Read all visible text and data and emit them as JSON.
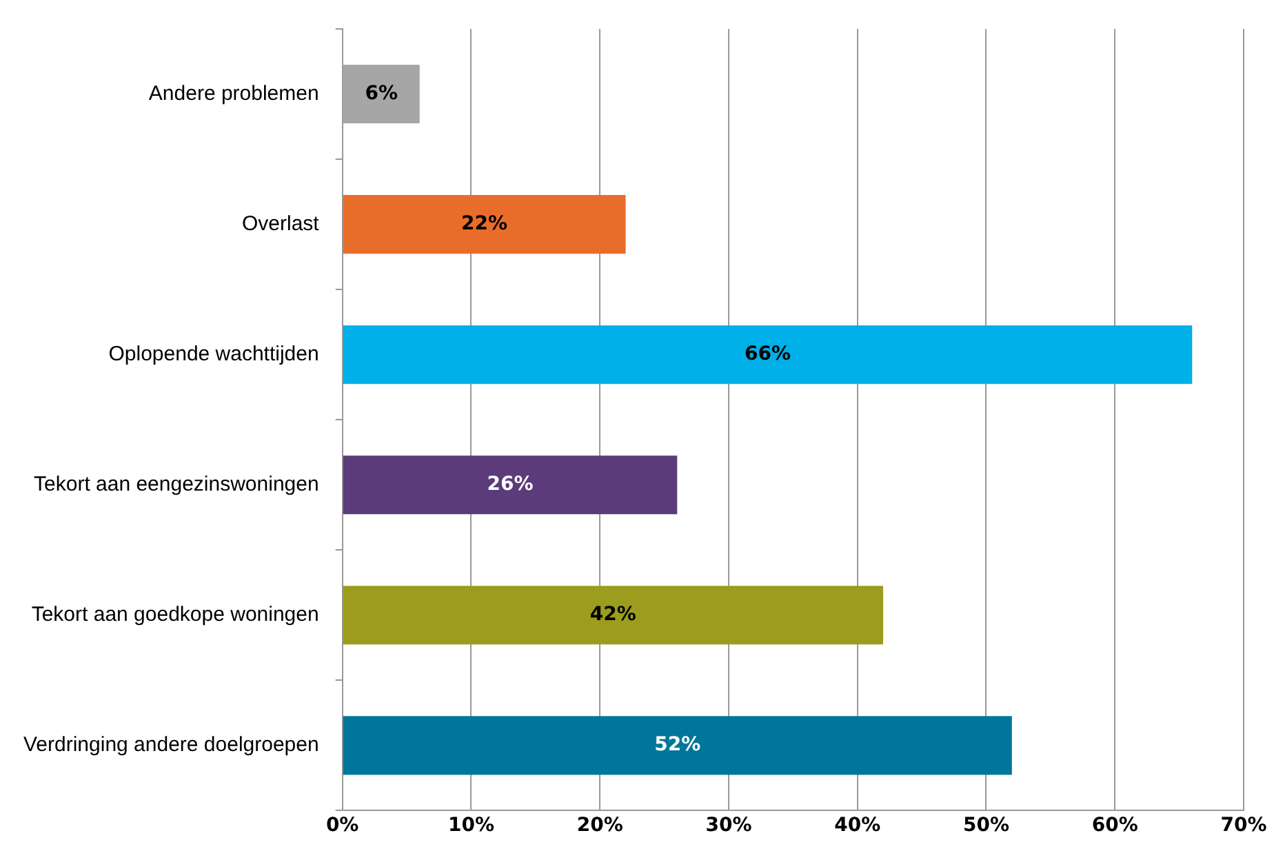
{
  "chart_data": {
    "type": "bar",
    "orientation": "horizontal",
    "categories": [
      "Andere problemen",
      "Overlast",
      "Oplopende wachttijden",
      "Tekort aan eengezinswoningen",
      "Tekort aan goedkope woningen",
      "Verdringing andere doelgroepen"
    ],
    "values": [
      6,
      22,
      66,
      26,
      42,
      52
    ],
    "colors": [
      "#a6a6a6",
      "#e96d2a",
      "#00b0e8",
      "#5b3b7a",
      "#9c9c1e",
      "#00779a"
    ],
    "value_labels": [
      "6%",
      "22%",
      "66%",
      "26%",
      "42%",
      "52%"
    ],
    "xlim": [
      0,
      70
    ],
    "xticks": [
      {
        "value": 0,
        "label": "0%"
      },
      {
        "value": 10,
        "label": "10%"
      },
      {
        "value": 20,
        "label": "20%"
      },
      {
        "value": 30,
        "label": "30%"
      },
      {
        "value": 40,
        "label": "40%"
      },
      {
        "value": 50,
        "label": "50%"
      },
      {
        "value": 60,
        "label": "60%"
      },
      {
        "value": 70,
        "label": "70%"
      }
    ],
    "grid": "x",
    "legend": false
  }
}
